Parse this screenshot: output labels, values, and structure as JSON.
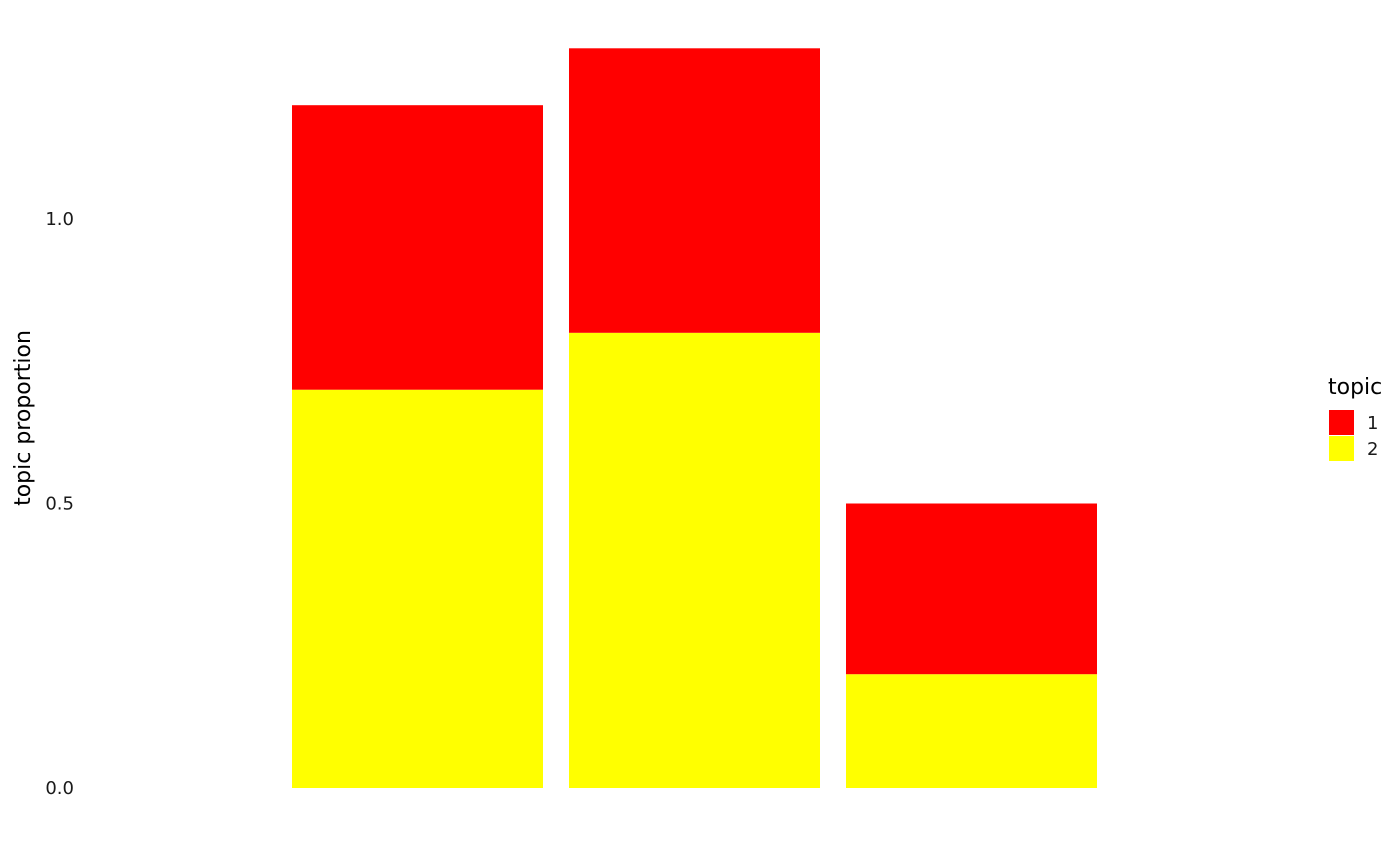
{
  "chart_data": {
    "type": "bar",
    "stacked": true,
    "categories": [
      "",
      "",
      ""
    ],
    "series": [
      {
        "name": "1",
        "color": "#FF0000",
        "values": [
          0.5,
          0.5,
          0.3
        ]
      },
      {
        "name": "2",
        "color": "#FFFF00",
        "values": [
          0.7,
          0.8,
          0.2
        ]
      }
    ],
    "stack_order_bottom_to_top": [
      "2",
      "1"
    ],
    "title": "",
    "xlabel": "",
    "ylabel": "topic proportion",
    "ylim": [
      0,
      1.3
    ],
    "yticks": [
      0.0,
      0.5,
      1.0
    ],
    "ytick_labels": [
      "0.0",
      "0.5",
      "1.0"
    ],
    "grid": false,
    "legend": {
      "title": "topic",
      "position": "right",
      "entries": [
        "1",
        "2"
      ]
    }
  }
}
